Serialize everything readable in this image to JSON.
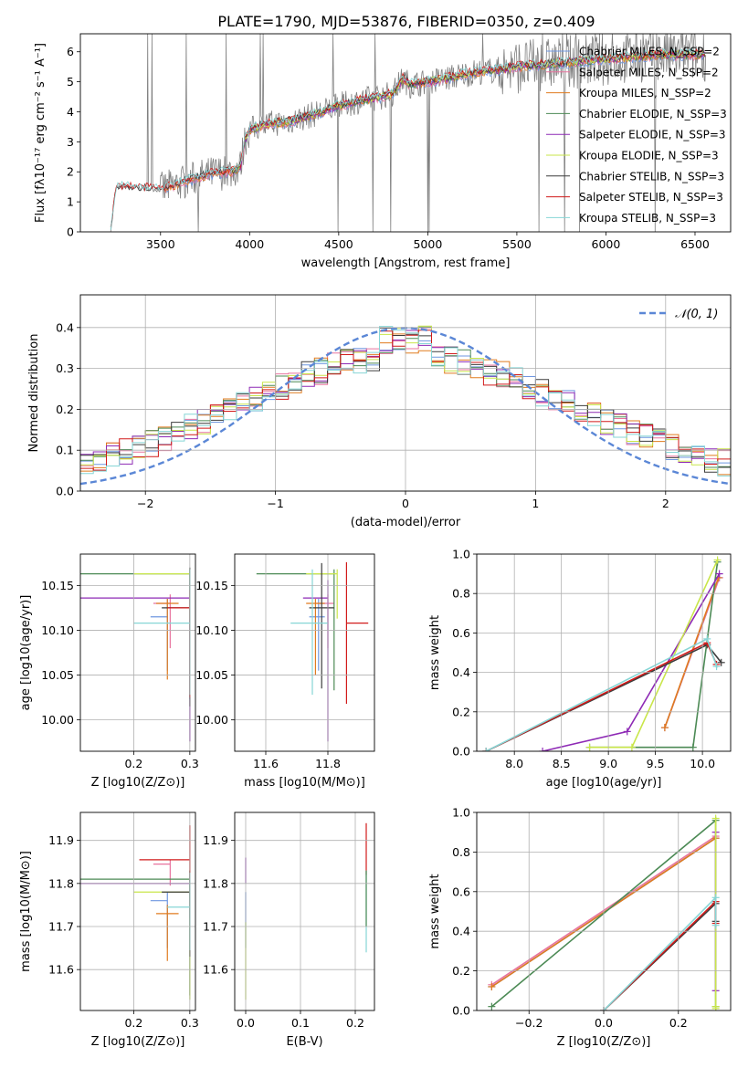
{
  "title": "PLATE=1790, MJD=53876, FIBERID=0350, z=0.409",
  "colors": {
    "chabrier_miles": "#6f97e0",
    "salpeter_miles": "#e8739e",
    "kroupa_miles": "#e07b1f",
    "chabrier_elodie": "#4c8a55",
    "salpeter_elodie": "#8e2ab5",
    "kroupa_elodie": "#c9e64a",
    "chabrier_stelib": "#3c3c3c",
    "salpeter_stelib": "#d11a1a",
    "kroupa_stelib": "#86d6d6",
    "data": "#808080",
    "normal": "#5b87d6",
    "grid": "#b0b0b0"
  },
  "legend_top": [
    "Chabrier MILES, N_SSP=2",
    "Salpeter MILES, N_SSP=2",
    "Kroupa MILES, N_SSP=2",
    "Chabrier ELODIE, N_SSP=3",
    "Salpeter ELODIE, N_SSP=3",
    "Kroupa ELODIE, N_SSP=3",
    "Chabrier STELIB, N_SSP=3",
    "Salpeter STELIB, N_SSP=3",
    "Kroupa STELIB, N_SSP=3"
  ],
  "legend_resid": "𝒩(0, 1)",
  "chart_data": [
    {
      "id": "spectrum",
      "type": "line",
      "xlabel": "wavelength [Angstrom, rest frame]",
      "ylabel": "Flux [fλ10⁻¹⁷ erg cm⁻² s⁻¹ A⁻¹]",
      "xlim": [
        3050,
        6700
      ],
      "ylim": [
        0,
        6.6
      ],
      "xticks": [
        3500,
        4000,
        4500,
        5000,
        5500,
        6000,
        6500
      ],
      "yticks": [
        0,
        1,
        2,
        3,
        4,
        5,
        6
      ],
      "series_continuum": {
        "x": [
          3220,
          3250,
          3300,
          3400,
          3500,
          3600,
          3700,
          3800,
          3900,
          3950,
          3970,
          4000,
          4100,
          4200,
          4300,
          4400,
          4500,
          4600,
          4700,
          4800,
          4860,
          4900,
          5000,
          5100,
          5200,
          5300,
          5400,
          5500,
          5600,
          5700,
          5800,
          5900,
          6000,
          6100,
          6200,
          6300,
          6400,
          6500,
          6550
        ],
        "y": [
          0.02,
          1.45,
          1.5,
          1.45,
          1.4,
          1.6,
          1.8,
          1.95,
          2.0,
          2.2,
          3.0,
          3.4,
          3.6,
          3.65,
          3.8,
          4.0,
          4.2,
          4.35,
          4.45,
          4.6,
          5.1,
          4.9,
          5.0,
          5.1,
          5.25,
          5.35,
          5.4,
          5.5,
          5.55,
          5.6,
          5.65,
          5.7,
          5.75,
          5.8,
          5.85,
          5.9,
          5.9,
          5.9,
          5.9
        ]
      }
    },
    {
      "id": "residuals",
      "type": "line",
      "xlabel": "(data-model)/error",
      "ylabel": "Normed distribution",
      "xlim": [
        -2.5,
        2.5
      ],
      "ylim": [
        0,
        0.48
      ],
      "xticks": [
        -2,
        -1,
        0,
        1,
        2
      ],
      "yticks": [
        0.0,
        0.1,
        0.2,
        0.3,
        0.4
      ],
      "normal": {
        "mu": 0,
        "sigma": 1
      }
    },
    {
      "id": "age_vs_Z",
      "type": "scatter",
      "xlabel": "Z [log10(Z/Z⊙)]",
      "ylabel": "age  [log10(age/yr)]",
      "xlim": [
        0.105,
        0.31
      ],
      "ylim": [
        9.965,
        10.185
      ],
      "xticks": [
        0.2,
        0.3
      ],
      "yticks": [
        10.0,
        10.05,
        10.1,
        10.15
      ],
      "points": [
        {
          "series": "chabrier_miles",
          "x": 0.26,
          "y": 10.115,
          "xerr": [
            0.03,
            0.0
          ],
          "yerr": [
            0.06,
            0.02
          ]
        },
        {
          "series": "salpeter_miles",
          "x": 0.265,
          "y": 10.13,
          "xerr": [
            0.03,
            0.0
          ],
          "yerr": [
            0.05,
            0.01
          ]
        },
        {
          "series": "kroupa_miles",
          "x": 0.26,
          "y": 10.13,
          "xerr": [
            0.02,
            0.02
          ],
          "yerr": [
            0.085,
            0.005
          ]
        },
        {
          "series": "chabrier_elodie",
          "x": 0.3,
          "y": 10.163,
          "xerr": [
            0.2,
            0.0
          ],
          "yerr": [
            0.14,
            0.005
          ]
        },
        {
          "series": "salpeter_elodie",
          "x": 0.3,
          "y": 10.136,
          "xerr": [
            0.2,
            0.0
          ],
          "yerr": [
            0.16,
            0.02
          ]
        },
        {
          "series": "kroupa_elodie",
          "x": 0.3,
          "y": 10.163,
          "xerr": [
            0.1,
            0.0
          ],
          "yerr": [
            0.05,
            0.005
          ]
        },
        {
          "series": "chabrier_stelib",
          "x": 0.3,
          "y": 10.125,
          "xerr": [
            0.05,
            0.0
          ],
          "yerr": [
            0.11,
            0.045
          ]
        },
        {
          "series": "salpeter_stelib",
          "x": 0.3,
          "y": 10.125,
          "xerr": [
            0.04,
            0.0
          ],
          "yerr": [
            0.1,
            0.02
          ]
        },
        {
          "series": "kroupa_stelib",
          "x": 0.3,
          "y": 10.108,
          "xerr": [
            0.1,
            0.0
          ],
          "yerr": [
            0.08,
            0.06
          ]
        }
      ]
    },
    {
      "id": "age_vs_mass",
      "type": "scatter",
      "xlabel": "mass [log10(M/M⊙)]",
      "ylabel": "",
      "xlim": [
        11.5,
        11.95
      ],
      "ylim": [
        9.965,
        10.185
      ],
      "xticks": [
        11.6,
        11.8
      ],
      "yticks": [
        10.0,
        10.05,
        10.1,
        10.15
      ],
      "points": [
        {
          "series": "chabrier_miles",
          "x": 11.77,
          "y": 10.115,
          "xerr": [
            0.03,
            0.02
          ],
          "yerr": [
            0.06,
            0.02
          ]
        },
        {
          "series": "salpeter_miles",
          "x": 11.8,
          "y": 10.13,
          "xerr": [
            0.04,
            0.02
          ],
          "yerr": [
            0.05,
            0.01
          ]
        },
        {
          "series": "kroupa_miles",
          "x": 11.76,
          "y": 10.13,
          "xerr": [
            0.03,
            0.03
          ],
          "yerr": [
            0.08,
            0.005
          ]
        },
        {
          "series": "chabrier_elodie",
          "x": 11.82,
          "y": 10.163,
          "xerr": [
            0.25,
            0.0
          ],
          "yerr": [
            0.13,
            0.005
          ]
        },
        {
          "series": "salpeter_elodie",
          "x": 11.8,
          "y": 10.136,
          "xerr": [
            0.08,
            0.0
          ],
          "yerr": [
            0.16,
            0.02
          ]
        },
        {
          "series": "kroupa_elodie",
          "x": 11.83,
          "y": 10.163,
          "xerr": [
            0.1,
            0.0
          ],
          "yerr": [
            0.05,
            0.005
          ]
        },
        {
          "series": "chabrier_stelib",
          "x": 11.78,
          "y": 10.125,
          "xerr": [
            0.04,
            0.04
          ],
          "yerr": [
            0.09,
            0.05
          ]
        },
        {
          "series": "salpeter_stelib",
          "x": 11.86,
          "y": 10.108,
          "xerr": [
            0.0,
            0.07
          ],
          "yerr": [
            0.09,
            0.068
          ]
        },
        {
          "series": "kroupa_stelib",
          "x": 11.75,
          "y": 10.108,
          "xerr": [
            0.07,
            0.05
          ],
          "yerr": [
            0.08,
            0.06
          ]
        }
      ]
    },
    {
      "id": "weight_vs_age",
      "type": "line",
      "xlabel": "age  [log10(age/yr)]",
      "ylabel": "mass weight",
      "xlim": [
        7.6,
        10.3
      ],
      "ylim": [
        0,
        1.0
      ],
      "xticks": [
        8.0,
        8.5,
        9.0,
        9.5,
        10.0
      ],
      "yticks": [
        0.0,
        0.2,
        0.4,
        0.6,
        0.8,
        1.0
      ],
      "series": [
        {
          "key": "chabrier_miles",
          "x": [
            9.6,
            10.18
          ],
          "y": [
            0.12,
            0.88
          ]
        },
        {
          "key": "salpeter_miles",
          "x": [
            9.6,
            10.18
          ],
          "y": [
            0.12,
            0.88
          ]
        },
        {
          "key": "kroupa_miles",
          "x": [
            9.6,
            10.17
          ],
          "y": [
            0.12,
            0.88
          ]
        },
        {
          "key": "chabrier_elodie",
          "x": [
            8.8,
            9.9,
            10.16
          ],
          "y": [
            0.02,
            0.02,
            0.96
          ]
        },
        {
          "key": "salpeter_elodie",
          "x": [
            8.3,
            9.2,
            10.18
          ],
          "y": [
            0.0,
            0.1,
            0.9
          ]
        },
        {
          "key": "kroupa_elodie",
          "x": [
            8.8,
            9.25,
            10.16
          ],
          "y": [
            0.02,
            0.02,
            0.97
          ]
        },
        {
          "key": "chabrier_stelib",
          "x": [
            7.7,
            10.05,
            10.2
          ],
          "y": [
            0.0,
            0.54,
            0.45
          ]
        },
        {
          "key": "salpeter_stelib",
          "x": [
            7.7,
            10.05,
            10.15
          ],
          "y": [
            0.0,
            0.55,
            0.44
          ]
        },
        {
          "key": "kroupa_stelib",
          "x": [
            7.7,
            10.05,
            10.15
          ],
          "y": [
            0.0,
            0.57,
            0.43
          ]
        }
      ]
    },
    {
      "id": "mass_vs_Z",
      "type": "scatter",
      "xlabel": "Z [log10(Z/Z⊙)]",
      "ylabel": "mass [log10(M/M⊙)]",
      "xlim": [
        0.105,
        0.31
      ],
      "ylim": [
        11.505,
        11.965
      ],
      "xticks": [
        0.2,
        0.3
      ],
      "yticks": [
        11.6,
        11.7,
        11.8,
        11.9
      ],
      "points": [
        {
          "series": "chabrier_miles",
          "x": 0.26,
          "y": 11.76,
          "xerr": [
            0.03,
            0.0
          ],
          "yerr": [
            0.11,
            0.02
          ]
        },
        {
          "series": "salpeter_miles",
          "x": 0.265,
          "y": 11.845,
          "xerr": [
            0.03,
            0.0
          ],
          "yerr": [
            0.05,
            0.01
          ]
        },
        {
          "series": "kroupa_miles",
          "x": 0.26,
          "y": 11.73,
          "xerr": [
            0.02,
            0.02
          ],
          "yerr": [
            0.11,
            0.02
          ]
        },
        {
          "series": "chabrier_elodie",
          "x": 0.3,
          "y": 11.81,
          "xerr": [
            0.2,
            0.0
          ],
          "yerr": [
            0.27,
            0.02
          ]
        },
        {
          "series": "salpeter_elodie",
          "x": 0.3,
          "y": 11.8,
          "xerr": [
            0.2,
            0.0
          ],
          "yerr": [
            0.08,
            0.0
          ]
        },
        {
          "series": "kroupa_elodie",
          "x": 0.3,
          "y": 11.78,
          "xerr": [
            0.1,
            0.0
          ],
          "yerr": [
            0.25,
            0.02
          ]
        },
        {
          "series": "chabrier_stelib",
          "x": 0.3,
          "y": 11.78,
          "xerr": [
            0.05,
            0.0
          ],
          "yerr": [
            0.15,
            0.05
          ]
        },
        {
          "series": "salpeter_stelib",
          "x": 0.3,
          "y": 11.855,
          "xerr": [
            0.09,
            0.0
          ],
          "yerr": [
            0.05,
            0.08
          ]
        },
        {
          "series": "kroupa_stelib",
          "x": 0.3,
          "y": 11.745,
          "xerr": [
            0.04,
            0.0
          ],
          "yerr": [
            0.1,
            0.08
          ]
        }
      ]
    },
    {
      "id": "mass_vs_EBV",
      "type": "scatter",
      "xlabel": "E(B-V)",
      "ylabel": "",
      "xlim": [
        -0.02,
        0.235
      ],
      "ylim": [
        11.505,
        11.965
      ],
      "xticks": [
        0.0,
        0.1,
        0.2
      ],
      "yticks": [
        11.6,
        11.7,
        11.8,
        11.9
      ],
      "points": [
        {
          "series": "chabrier_miles",
          "x": 0.0,
          "y": 11.76,
          "xerr": [
            0,
            0
          ],
          "yerr": [
            0.11,
            0.02
          ]
        },
        {
          "series": "salpeter_elodie",
          "x": 0.0,
          "y": 11.83,
          "xerr": [
            0,
            0
          ],
          "yerr": [
            0.03,
            0.03
          ]
        },
        {
          "series": "kroupa_elodie",
          "x": 0.0,
          "y": 11.63,
          "xerr": [
            0,
            0
          ],
          "yerr": [
            0.1,
            0.08
          ]
        },
        {
          "series": "salpeter_stelib",
          "x": 0.22,
          "y": 11.86,
          "xerr": [
            0,
            0
          ],
          "yerr": [
            0.04,
            0.08
          ]
        },
        {
          "series": "kroupa_stelib",
          "x": 0.22,
          "y": 11.7,
          "xerr": [
            0,
            0
          ],
          "yerr": [
            0.06,
            0.13
          ]
        },
        {
          "series": "chabrier_elodie",
          "x": 0.22,
          "y": 11.76,
          "xerr": [
            0,
            0
          ],
          "yerr": [
            0.06,
            0.07
          ]
        }
      ]
    },
    {
      "id": "weight_vs_Z",
      "type": "line",
      "xlabel": "Z [log10(Z/Z⊙)]",
      "ylabel": "mass weight",
      "xlim": [
        -0.34,
        0.34
      ],
      "ylim": [
        0,
        1.0
      ],
      "xticks": [
        -0.2,
        0.0,
        0.2
      ],
      "yticks": [
        0.0,
        0.2,
        0.4,
        0.6,
        0.8,
        1.0
      ],
      "series": [
        {
          "key": "chabrier_miles",
          "x": [
            -0.3,
            0.3
          ],
          "y": [
            0.12,
            0.87
          ]
        },
        {
          "key": "salpeter_miles",
          "x": [
            -0.3,
            0.3
          ],
          "y": [
            0.13,
            0.88
          ]
        },
        {
          "key": "kroupa_miles",
          "x": [
            -0.3,
            0.3
          ],
          "y": [
            0.12,
            0.87
          ]
        },
        {
          "key": "chabrier_elodie",
          "x": [
            -0.3,
            0.3,
            0.3
          ],
          "y": [
            0.02,
            0.96,
            0.02
          ]
        },
        {
          "key": "salpeter_elodie",
          "x": [
            0.3,
            0.3
          ],
          "y": [
            0.1,
            0.9
          ]
        },
        {
          "key": "kroupa_elodie",
          "x": [
            0.3,
            0.3,
            0.3
          ],
          "y": [
            0.02,
            0.97,
            0.01
          ]
        },
        {
          "key": "chabrier_stelib",
          "x": [
            0.0,
            0.3,
            0.3
          ],
          "y": [
            0.0,
            0.54,
            0.45
          ]
        },
        {
          "key": "salpeter_stelib",
          "x": [
            0.0,
            0.3,
            0.3
          ],
          "y": [
            0.0,
            0.55,
            0.44
          ]
        },
        {
          "key": "kroupa_stelib",
          "x": [
            0.0,
            0.3,
            0.3
          ],
          "y": [
            0.0,
            0.57,
            0.43
          ]
        }
      ]
    }
  ]
}
